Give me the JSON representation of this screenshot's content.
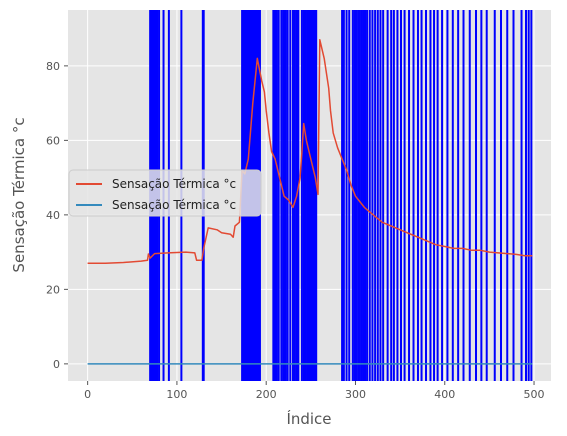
{
  "chart_data": {
    "type": "line",
    "xlabel": "Índice",
    "ylabel": "Sensação Térmica °c",
    "xlim": [
      -22,
      519
    ],
    "ylim": [
      -4.6,
      95
    ],
    "x_ticks": [
      0,
      100,
      200,
      300,
      400,
      500
    ],
    "y_ticks": [
      0,
      20,
      40,
      60,
      80
    ],
    "grid": true,
    "legend_position": "center-left",
    "series": [
      {
        "name": "Sensação Térmica °c",
        "color": "#E24A33",
        "points": [
          [
            0,
            27
          ],
          [
            20,
            27
          ],
          [
            40,
            27.2
          ],
          [
            60,
            27.6
          ],
          [
            67,
            27.8
          ],
          [
            68,
            29.5
          ],
          [
            70,
            28.4
          ],
          [
            75,
            29.6
          ],
          [
            90,
            29.8
          ],
          [
            100,
            29.9
          ],
          [
            110,
            30
          ],
          [
            120,
            29.8
          ],
          [
            122,
            27.8
          ],
          [
            128,
            27.8
          ],
          [
            130,
            31
          ],
          [
            135,
            36.5
          ],
          [
            145,
            36
          ],
          [
            150,
            35.2
          ],
          [
            160,
            34.8
          ],
          [
            163,
            34
          ],
          [
            165,
            37
          ],
          [
            170,
            38
          ],
          [
            173,
            52
          ],
          [
            176,
            51
          ],
          [
            180,
            55
          ],
          [
            185,
            70
          ],
          [
            190,
            82
          ],
          [
            195,
            76
          ],
          [
            198,
            73
          ],
          [
            200,
            68
          ],
          [
            203,
            62
          ],
          [
            206,
            57
          ],
          [
            210,
            55
          ],
          [
            215,
            50
          ],
          [
            220,
            45
          ],
          [
            225,
            44
          ],
          [
            230,
            42
          ],
          [
            234,
            45
          ],
          [
            238,
            50
          ],
          [
            240,
            57
          ],
          [
            242,
            64.5
          ],
          [
            245,
            60
          ],
          [
            250,
            55
          ],
          [
            255,
            50
          ],
          [
            258,
            45.5
          ],
          [
            260,
            87
          ],
          [
            265,
            82
          ],
          [
            270,
            74
          ],
          [
            272,
            68
          ],
          [
            275,
            62
          ],
          [
            280,
            58
          ],
          [
            285,
            55
          ],
          [
            290,
            52
          ],
          [
            295,
            48
          ],
          [
            300,
            45
          ],
          [
            310,
            42
          ],
          [
            320,
            40
          ],
          [
            330,
            38
          ],
          [
            340,
            37
          ],
          [
            350,
            36
          ],
          [
            360,
            35
          ],
          [
            370,
            34
          ],
          [
            380,
            33
          ],
          [
            390,
            32
          ],
          [
            400,
            31.5
          ],
          [
            410,
            31
          ],
          [
            420,
            31
          ],
          [
            430,
            30.5
          ],
          [
            440,
            30.5
          ],
          [
            450,
            30
          ],
          [
            460,
            29.8
          ],
          [
            470,
            29.6
          ],
          [
            480,
            29.4
          ],
          [
            490,
            29
          ],
          [
            498,
            29
          ]
        ]
      },
      {
        "name": "Sensação Térmica °c",
        "color": "#348ABD",
        "points": [
          [
            0,
            0
          ],
          [
            498,
            0
          ]
        ]
      }
    ],
    "vertical_lines": {
      "color": "#0000FF",
      "x": [
        70,
        71,
        72,
        73,
        74,
        75,
        76,
        77,
        78,
        80,
        85,
        91,
        105,
        129,
        130,
        173,
        174,
        175,
        176,
        177,
        178,
        179,
        180,
        181,
        182,
        183,
        184,
        185,
        186,
        187,
        188,
        189,
        190,
        191,
        192,
        193,
        208,
        209,
        210,
        211,
        212,
        214,
        217,
        219,
        220,
        222,
        224,
        227,
        230,
        232,
        234,
        236,
        240,
        242,
        244,
        246,
        247,
        248,
        249,
        250,
        251,
        252,
        253,
        254,
        255,
        256,
        285,
        287,
        290,
        293,
        297,
        299,
        301,
        303,
        305,
        307,
        309,
        311,
        313,
        316,
        319,
        322,
        325,
        328,
        331,
        336,
        340,
        343,
        347,
        351,
        355,
        360,
        365,
        370,
        374,
        379,
        384,
        388,
        392,
        397,
        403,
        409,
        415,
        421,
        428,
        435,
        441,
        447,
        456,
        463,
        470,
        477,
        486,
        491,
        494,
        497
      ]
    }
  }
}
